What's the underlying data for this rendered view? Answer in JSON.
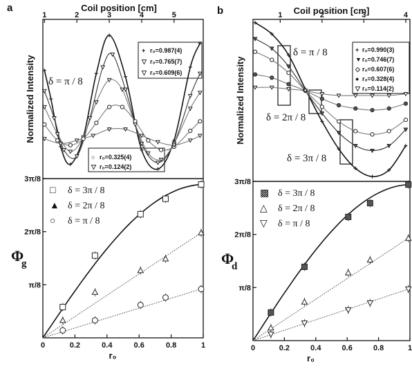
{
  "chart_data": [
    {
      "id": "a-top",
      "panel": "a",
      "type": "line",
      "top_axis_label": "Coil position [cm]",
      "top_ticks": [
        "1",
        "2",
        "3",
        "4",
        "5"
      ],
      "top_tick_values": [
        1,
        2,
        3,
        4,
        5
      ],
      "xlim": [
        0.95,
        5.9
      ],
      "ylabel": "Normalized Intensity",
      "ylim": [
        0,
        1
      ],
      "annotation": "δ = π / 8",
      "legend_upper": [
        {
          "symbol": "+",
          "text": "r₀=0.987(4)"
        },
        {
          "symbol": "▽",
          "text": "r₀=0.765(7)"
        },
        {
          "symbol": "▽",
          "text": "r₀=0.609(6)"
        }
      ],
      "legend_lower": [
        {
          "symbol": "○",
          "text": "r₀=0.325(4)"
        },
        {
          "symbol": "▽",
          "text": "r₀=0.124(2)"
        }
      ],
      "series": [
        {
          "r0": 0.987,
          "points": [
            [
              1.0,
              0.68
            ],
            [
              1.2,
              0.5
            ],
            [
              1.5,
              0.2
            ],
            [
              1.8,
              0.09
            ],
            [
              2.2,
              0.26
            ],
            [
              2.6,
              0.66
            ],
            [
              3.0,
              0.9
            ],
            [
              3.5,
              0.64
            ],
            [
              4.0,
              0.18
            ],
            [
              4.5,
              0.06
            ],
            [
              5.0,
              0.24
            ],
            [
              5.5,
              0.7
            ],
            [
              5.8,
              0.85
            ]
          ]
        },
        {
          "r0": 0.765,
          "points": [
            [
              1.0,
              0.55
            ],
            [
              1.3,
              0.38
            ],
            [
              1.6,
              0.18
            ],
            [
              2.0,
              0.14
            ],
            [
              2.4,
              0.38
            ],
            [
              2.8,
              0.7
            ],
            [
              3.1,
              0.78
            ],
            [
              3.5,
              0.56
            ],
            [
              4.0,
              0.22
            ],
            [
              4.5,
              0.1
            ],
            [
              5.0,
              0.22
            ],
            [
              5.5,
              0.52
            ],
            [
              5.8,
              0.66
            ]
          ]
        },
        {
          "r0": 0.609,
          "points": [
            [
              1.0,
              0.45
            ],
            [
              1.4,
              0.28
            ],
            [
              1.8,
              0.17
            ],
            [
              2.2,
              0.26
            ],
            [
              2.6,
              0.48
            ],
            [
              3.0,
              0.62
            ],
            [
              3.4,
              0.56
            ],
            [
              3.8,
              0.34
            ],
            [
              4.2,
              0.16
            ],
            [
              4.6,
              0.12
            ],
            [
              5.0,
              0.22
            ],
            [
              5.5,
              0.44
            ],
            [
              5.8,
              0.54
            ]
          ]
        },
        {
          "r0": 0.325,
          "points": [
            [
              1.0,
              0.34
            ],
            [
              1.4,
              0.24
            ],
            [
              1.8,
              0.21
            ],
            [
              2.2,
              0.25
            ],
            [
              2.6,
              0.35
            ],
            [
              3.0,
              0.45
            ],
            [
              3.4,
              0.45
            ],
            [
              3.8,
              0.36
            ],
            [
              4.2,
              0.24
            ],
            [
              4.6,
              0.18
            ],
            [
              5.0,
              0.2
            ],
            [
              5.5,
              0.3
            ],
            [
              5.8,
              0.36
            ]
          ]
        },
        {
          "r0": 0.124,
          "points": [
            [
              1.0,
              0.25
            ],
            [
              1.5,
              0.22
            ],
            [
              2.0,
              0.24
            ],
            [
              2.5,
              0.27
            ],
            [
              3.0,
              0.31
            ],
            [
              3.5,
              0.31
            ],
            [
              4.0,
              0.27
            ],
            [
              4.5,
              0.23
            ],
            [
              5.0,
              0.21
            ],
            [
              5.5,
              0.24
            ],
            [
              5.8,
              0.27
            ]
          ]
        }
      ]
    },
    {
      "id": "a-bottom",
      "panel": "a",
      "type": "scatter",
      "xlabel": "r₀",
      "x_ticks": [
        "0",
        "0.2",
        "0.4",
        "0.6",
        "0.8",
        "1"
      ],
      "x_tick_values": [
        0,
        0.2,
        0.4,
        0.6,
        0.8,
        1
      ],
      "xlim": [
        0,
        1
      ],
      "ylabel_main": "Φ",
      "ylabel_sub": "g",
      "y_ticks": [
        "π/8",
        "2π/8",
        "3π/8"
      ],
      "y_tick_values": [
        1,
        2,
        3
      ],
      "ylim": [
        0,
        3
      ],
      "legend": [
        {
          "symbol": "□",
          "text": "δ = 3π / 8"
        },
        {
          "symbol": "▲",
          "text": "δ = 2π / 8"
        },
        {
          "symbol": "○",
          "text": "δ = π / 8"
        }
      ],
      "series": [
        {
          "delta": "3π/8",
          "marker": "square",
          "x": [
            0.124,
            0.325,
            0.609,
            0.765,
            0.987
          ],
          "y": [
            0.58,
            1.55,
            2.33,
            2.62,
            2.89
          ],
          "fit": "curve"
        },
        {
          "delta": "2π/8",
          "marker": "triangle",
          "x": [
            0.124,
            0.325,
            0.609,
            0.765,
            0.987
          ],
          "y": [
            0.33,
            0.86,
            1.27,
            1.49,
            1.98
          ],
          "fit": "line"
        },
        {
          "delta": "π/8",
          "marker": "circle",
          "x": [
            0.124,
            0.325,
            0.609,
            0.765,
            0.987
          ],
          "y": [
            0.14,
            0.33,
            0.62,
            0.76,
            0.92
          ],
          "fit": "line"
        }
      ]
    },
    {
      "id": "b-top",
      "panel": "b",
      "type": "line",
      "top_axis_label": "Coil position [cm]",
      "top_ticks": [
        "1",
        "2",
        "3",
        "4"
      ],
      "top_tick_values": [
        1,
        2,
        3,
        4
      ],
      "xlim": [
        0.35,
        4.1
      ],
      "ylabel": "Normalized Intensity",
      "ylim": [
        0,
        1
      ],
      "annotations": [
        "δ = π / 8",
        "δ = 2π / 8",
        "δ = 3π / 8"
      ],
      "legend": [
        {
          "symbol": "+",
          "text": "r₀=0.990(3)"
        },
        {
          "symbol": "▼",
          "text": "r₀=0.746(7)"
        },
        {
          "symbol": "◇",
          "text": "r₀=0.607(6)"
        },
        {
          "symbol": "●",
          "text": "r₀=0.328(4)"
        },
        {
          "symbol": "▽",
          "text": "r₀=0.114(2)"
        }
      ],
      "series": [
        {
          "r0": 0.99,
          "points": [
            [
              0.4,
              0.98
            ],
            [
              0.8,
              0.91
            ],
            [
              1.2,
              0.78
            ],
            [
              1.6,
              0.57
            ],
            [
              2.0,
              0.37
            ],
            [
              2.4,
              0.2
            ],
            [
              2.8,
              0.08
            ],
            [
              3.2,
              0.03
            ],
            [
              3.6,
              0.07
            ],
            [
              4.0,
              0.22
            ]
          ]
        },
        {
          "r0": 0.746,
          "points": [
            [
              0.4,
              0.88
            ],
            [
              0.8,
              0.82
            ],
            [
              1.2,
              0.71
            ],
            [
              1.6,
              0.56
            ],
            [
              2.0,
              0.42
            ],
            [
              2.4,
              0.3
            ],
            [
              2.8,
              0.22
            ],
            [
              3.2,
              0.19
            ],
            [
              3.6,
              0.22
            ],
            [
              4.0,
              0.32
            ]
          ]
        },
        {
          "r0": 0.607,
          "points": [
            [
              0.4,
              0.8
            ],
            [
              0.8,
              0.75
            ],
            [
              1.2,
              0.67
            ],
            [
              1.6,
              0.56
            ],
            [
              2.0,
              0.46
            ],
            [
              2.4,
              0.37
            ],
            [
              2.8,
              0.31
            ],
            [
              3.2,
              0.29
            ],
            [
              3.6,
              0.31
            ],
            [
              4.0,
              0.38
            ]
          ]
        },
        {
          "r0": 0.328,
          "points": [
            [
              0.4,
              0.66
            ],
            [
              0.8,
              0.64
            ],
            [
              1.2,
              0.6
            ],
            [
              1.6,
              0.56
            ],
            [
              2.0,
              0.51
            ],
            [
              2.4,
              0.47
            ],
            [
              2.8,
              0.45
            ],
            [
              3.2,
              0.44
            ],
            [
              3.6,
              0.45
            ],
            [
              4.0,
              0.48
            ]
          ]
        },
        {
          "r0": 0.114,
          "points": [
            [
              0.4,
              0.58
            ],
            [
              0.8,
              0.58
            ],
            [
              1.2,
              0.57
            ],
            [
              1.6,
              0.56
            ],
            [
              2.0,
              0.54
            ],
            [
              2.4,
              0.53
            ],
            [
              2.8,
              0.53
            ],
            [
              3.2,
              0.53
            ],
            [
              3.6,
              0.53
            ],
            [
              4.0,
              0.54
            ]
          ]
        }
      ]
    },
    {
      "id": "b-bottom",
      "panel": "b",
      "type": "scatter",
      "xlabel": "r₀",
      "x_ticks": [
        "0",
        "0.2",
        "0.4",
        "0.6",
        "0.8",
        "1"
      ],
      "x_tick_values": [
        0,
        0.2,
        0.4,
        0.6,
        0.8,
        1
      ],
      "xlim": [
        0,
        1
      ],
      "ylabel_main": "Φ",
      "ylabel_sub": "d",
      "y_ticks": [
        "π/8",
        "2π/8",
        "3π/8"
      ],
      "y_tick_values": [
        1,
        2,
        3
      ],
      "ylim": [
        0,
        3
      ],
      "legend": [
        {
          "symbol": "▩",
          "text": "δ = 3π / 8"
        },
        {
          "symbol": "△",
          "text": "δ = 2π / 8"
        },
        {
          "symbol": "▽",
          "text": "δ = π / 8"
        }
      ],
      "series": [
        {
          "delta": "3π/8",
          "marker": "square",
          "x": [
            0.114,
            0.328,
            0.607,
            0.746,
            0.99
          ],
          "y": [
            0.53,
            1.39,
            2.33,
            2.59,
            2.94
          ],
          "fit": "curve"
        },
        {
          "delta": "2π/8",
          "marker": "triangle",
          "x": [
            0.114,
            0.328,
            0.607,
            0.746,
            0.99
          ],
          "y": [
            0.24,
            0.73,
            1.28,
            1.52,
            1.93
          ],
          "fit": "line"
        },
        {
          "delta": "π/8",
          "marker": "triangle-down",
          "x": [
            0.114,
            0.328,
            0.607,
            0.746,
            0.99
          ],
          "y": [
            0.12,
            0.33,
            0.58,
            0.71,
            0.97
          ],
          "fit": "line"
        }
      ]
    }
  ],
  "labels": {
    "panel_a": "a",
    "panel_b": "b"
  }
}
